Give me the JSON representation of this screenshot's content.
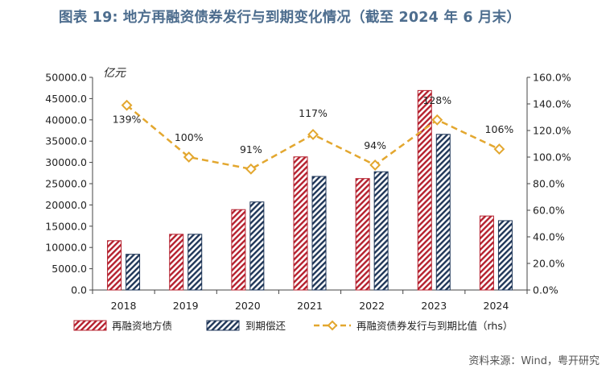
{
  "title": "图表 19: 地方再融资债券发行与到期变化情况（截至 2024 年 6 月末）",
  "unit_label": "亿元",
  "source_text": "资料来源：Wind，粤开研究",
  "colors": {
    "refinance": "#b5202e",
    "maturity": "#1f3658",
    "ratio": "#e3a72f",
    "title": "#4d6d8e"
  },
  "chart_data": {
    "type": "bar",
    "categories": [
      "2018",
      "2019",
      "2020",
      "2021",
      "2022",
      "2023",
      "2024"
    ],
    "series": [
      {
        "name": "再融资地方债",
        "type": "bar",
        "axis": "left",
        "values": [
          11600,
          13100,
          18900,
          31300,
          26200,
          46900,
          17400
        ]
      },
      {
        "name": "到期偿还",
        "type": "bar",
        "axis": "left",
        "values": [
          8400,
          13100,
          20700,
          26700,
          27800,
          36600,
          16300
        ]
      },
      {
        "name": "再融资债券发行与到期比值（rhs）",
        "type": "line",
        "axis": "right",
        "values": [
          1.39,
          1.0,
          0.91,
          1.17,
          0.94,
          1.28,
          1.06
        ],
        "labels": [
          "139%",
          "100%",
          "91%",
          "117%",
          "94%",
          "128%",
          "106%"
        ]
      }
    ],
    "y_left": {
      "min": 0,
      "max": 50000,
      "step": 5000,
      "ticks": [
        "0.0",
        "5000.0",
        "10000.0",
        "15000.0",
        "20000.0",
        "25000.0",
        "30000.0",
        "35000.0",
        "40000.0",
        "45000.0",
        "50000.0"
      ]
    },
    "y_right": {
      "min": 0,
      "max": 1.6,
      "step": 0.2,
      "ticks": [
        "0.0%",
        "20.0%",
        "40.0%",
        "60.0%",
        "80.0%",
        "100.0%",
        "120.0%",
        "140.0%",
        "160.0%"
      ]
    },
    "grid": false,
    "legend_position": "bottom"
  }
}
